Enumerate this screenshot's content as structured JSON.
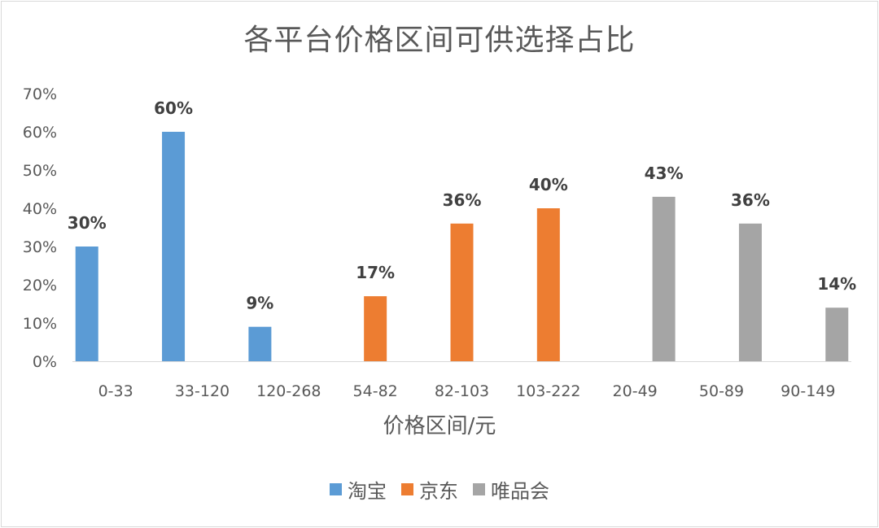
{
  "chart_data": {
    "type": "bar",
    "title": "各平台价格区间可供选择占比",
    "xlabel": "价格区间/元",
    "ylabel": "",
    "ylim": [
      0,
      70
    ],
    "yticks": [
      "0%",
      "10%",
      "20%",
      "30%",
      "40%",
      "50%",
      "60%",
      "70%"
    ],
    "categories": [
      "0-33",
      "33-120",
      "120-268",
      "54-82",
      "82-103",
      "103-222",
      "20-49",
      "50-89",
      "90-149"
    ],
    "series": [
      {
        "name": "淘宝",
        "color": "#5b9bd5",
        "values": [
          30,
          60,
          9,
          null,
          null,
          null,
          null,
          null,
          null
        ],
        "labels": [
          "30%",
          "60%",
          "9%",
          "",
          "",
          "",
          "",
          "",
          ""
        ]
      },
      {
        "name": "京东",
        "color": "#ed7d31",
        "values": [
          null,
          null,
          null,
          17,
          36,
          40,
          null,
          null,
          null
        ],
        "labels": [
          "",
          "",
          "",
          "17%",
          "36%",
          "40%",
          "",
          "",
          ""
        ]
      },
      {
        "name": "唯品会",
        "color": "#a5a5a5",
        "values": [
          null,
          null,
          null,
          null,
          null,
          null,
          43,
          36,
          14
        ],
        "labels": [
          "",
          "",
          "",
          "",
          "",
          "",
          "43%",
          "36%",
          "14%"
        ]
      }
    ],
    "grid": false,
    "legend_position": "bottom"
  }
}
